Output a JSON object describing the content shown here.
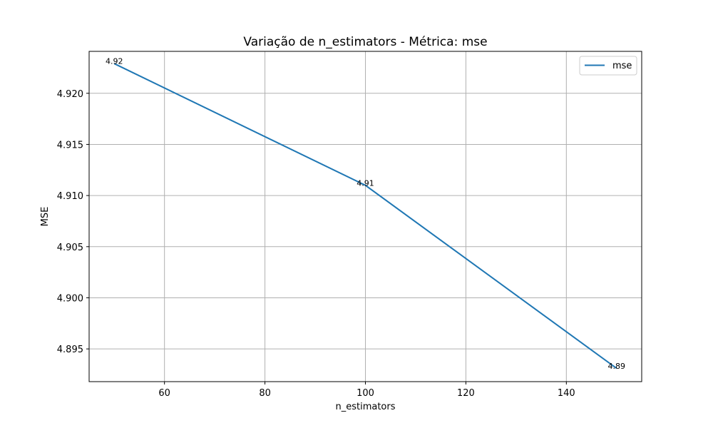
{
  "chart_data": {
    "type": "line",
    "title": "Variação de n_estimators - Métrica: mse",
    "xlabel": "n_estimators",
    "ylabel": "MSE",
    "xlim": [
      45,
      155
    ],
    "ylim": [
      4.8918,
      4.9241
    ],
    "x_ticks": [
      60,
      80,
      100,
      120,
      140
    ],
    "x_tick_labels": [
      "60",
      "80",
      "100",
      "120",
      "140"
    ],
    "y_ticks": [
      4.895,
      4.9,
      4.905,
      4.91,
      4.915,
      4.92
    ],
    "y_tick_labels": [
      "4.895",
      "4.900",
      "4.905",
      "4.910",
      "4.915",
      "4.920"
    ],
    "grid": true,
    "legend_position": "top-right",
    "series": [
      {
        "name": "mse",
        "color": "#1f77b4",
        "x": [
          50,
          100,
          150
        ],
        "y": [
          4.9229,
          4.911,
          4.8931
        ],
        "point_labels": [
          "4.92",
          "4.91",
          "4.89"
        ]
      }
    ]
  }
}
